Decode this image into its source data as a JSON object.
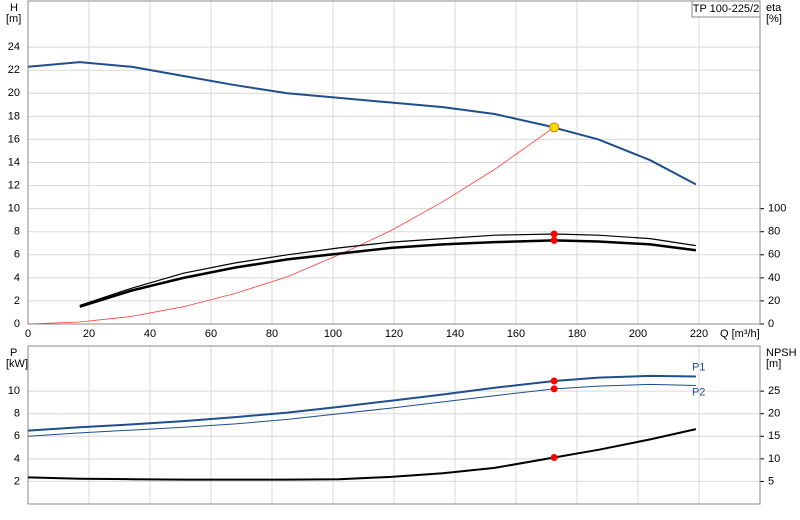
{
  "chart_data": [
    {
      "type": "line",
      "title": "TP 100-225/2",
      "x_label": "Q [m³/h]",
      "y_label": "H",
      "y_unit": "[m]",
      "y2_label": "eta",
      "y2_unit": "[%]",
      "xlim": [
        0,
        240
      ],
      "xticks": [
        0,
        20,
        40,
        60,
        80,
        100,
        120,
        140,
        160,
        180,
        200,
        220
      ],
      "ylim": [
        0,
        28
      ],
      "yticks": [
        0,
        2,
        4,
        6,
        8,
        10,
        12,
        14,
        16,
        18,
        20,
        22,
        24
      ],
      "y2lim": [
        0,
        280
      ],
      "y2ticks": [
        0,
        20,
        40,
        60,
        80,
        100
      ],
      "grid": true,
      "series": [
        {
          "color": "#1f4e8c",
          "width": 2,
          "x": [
            0,
            17,
            34,
            51,
            68,
            85,
            102,
            119,
            136,
            153,
            170,
            187,
            204,
            219
          ],
          "values": [
            22.3,
            22.7,
            22.3,
            21.5,
            20.7,
            20.0,
            19.6,
            19.2,
            18.8,
            18.2,
            17.2,
            16.0,
            14.2,
            12.1
          ]
        },
        {
          "color": "#ff3b3b",
          "width": 0.8,
          "x": [
            0,
            17,
            34,
            51,
            68,
            85,
            102,
            119,
            136,
            153,
            172.5
          ],
          "values": [
            0,
            0.17,
            0.66,
            1.5,
            2.65,
            4.1,
            6.0,
            8.1,
            10.6,
            13.4,
            17.05
          ]
        },
        {
          "color": "#000000",
          "width": 1.2,
          "axis": "y2",
          "x": [
            17,
            34,
            51,
            68,
            85,
            102,
            119,
            136,
            153,
            172.5,
            187,
            204,
            219
          ],
          "values": [
            16,
            31,
            44,
            53,
            60,
            66,
            71,
            74,
            77,
            78,
            77,
            74,
            68
          ]
        },
        {
          "color": "#000000",
          "width": 2.5,
          "axis": "y2",
          "x": [
            17,
            34,
            51,
            68,
            85,
            102,
            119,
            136,
            153,
            172.5,
            187,
            204,
            219
          ],
          "values": [
            15,
            29,
            40,
            49,
            56,
            61,
            66,
            69,
            71,
            72.5,
            71.5,
            69,
            64
          ]
        }
      ],
      "markers": [
        {
          "x": 172.5,
          "y": 17.05,
          "color": "#ffd700"
        },
        {
          "x": 172.5,
          "y": 78,
          "color": "#ff0000",
          "axis": "y2"
        },
        {
          "x": 172.5,
          "y": 72.5,
          "color": "#ff0000",
          "axis": "y2"
        }
      ]
    },
    {
      "type": "line",
      "y_label": "P",
      "y_unit": "[kW]",
      "y2_label": "NPSH",
      "y2_unit": "[m]",
      "xlim": [
        0,
        240
      ],
      "xticks": [
        0,
        20,
        40,
        60,
        80,
        100,
        120,
        140,
        160,
        180,
        200,
        220
      ],
      "ylim": [
        0,
        14
      ],
      "yticks": [
        2,
        4,
        6,
        8,
        10
      ],
      "y2lim": [
        0,
        35
      ],
      "y2ticks": [
        5,
        10,
        15,
        20,
        25
      ],
      "grid": true,
      "series": [
        {
          "name": "P1",
          "color": "#1f4e8c",
          "width": 2,
          "x": [
            0,
            17,
            34,
            51,
            68,
            85,
            102,
            119,
            136,
            153,
            172.5,
            187,
            204,
            219
          ],
          "values": [
            6.5,
            6.8,
            7.05,
            7.35,
            7.7,
            8.1,
            8.6,
            9.15,
            9.7,
            10.3,
            10.9,
            11.2,
            11.35,
            11.3
          ]
        },
        {
          "name": "P2",
          "color": "#1f4e8c",
          "width": 1,
          "x": [
            0,
            17,
            34,
            51,
            68,
            85,
            102,
            119,
            136,
            153,
            172.5,
            187,
            204,
            219
          ],
          "values": [
            6.0,
            6.3,
            6.55,
            6.8,
            7.1,
            7.5,
            8.0,
            8.5,
            9.05,
            9.6,
            10.2,
            10.45,
            10.6,
            10.5
          ]
        },
        {
          "color": "#000000",
          "width": 2,
          "axis": "y2",
          "x": [
            0,
            17,
            34,
            51,
            68,
            85,
            102,
            119,
            136,
            153,
            172.5,
            187,
            204,
            219
          ],
          "values": [
            5.9,
            5.6,
            5.5,
            5.4,
            5.4,
            5.4,
            5.5,
            6.0,
            6.8,
            8.0,
            10.3,
            12.0,
            14.3,
            16.6
          ]
        }
      ],
      "markers": [
        {
          "x": 172.5,
          "y": 10.9,
          "color": "#ff0000"
        },
        {
          "x": 172.5,
          "y": 10.2,
          "color": "#ff0000"
        },
        {
          "x": 172.5,
          "y": 10.3,
          "color": "#ff0000",
          "axis": "y2"
        }
      ]
    }
  ]
}
